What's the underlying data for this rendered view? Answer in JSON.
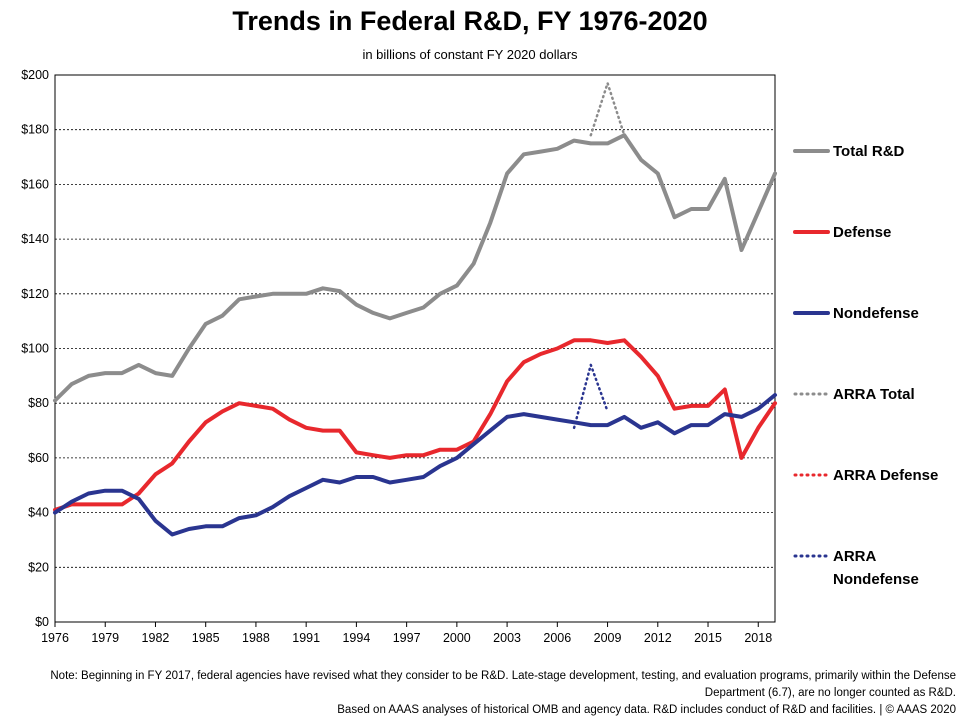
{
  "chart_data": {
    "type": "line",
    "title": "Trends in Federal R&D, FY 1976-2020",
    "subtitle": "in billions of constant FY 2020 dollars",
    "ylim": [
      0,
      200
    ],
    "xlim": [
      1976,
      2019
    ],
    "y_ticks": [
      "$0",
      "$20",
      "$40",
      "$60",
      "$80",
      "$100",
      "$120",
      "$140",
      "$160",
      "$180",
      "$200"
    ],
    "y_tick_values": [
      0,
      20,
      40,
      60,
      80,
      100,
      120,
      140,
      160,
      180,
      200
    ],
    "x_ticks": [
      "1976",
      "1979",
      "1982",
      "1985",
      "1988",
      "1991",
      "1994",
      "1997",
      "2000",
      "2003",
      "2006",
      "2009",
      "2012",
      "2015",
      "2018"
    ],
    "x_tick_values": [
      1976,
      1979,
      1982,
      1985,
      1988,
      1991,
      1994,
      1997,
      2000,
      2003,
      2006,
      2009,
      2012,
      2015,
      2018
    ],
    "grid": "horizontal dashed",
    "legend_position": "right",
    "series": [
      {
        "name": "Total R&D",
        "color": "#8c8c8c",
        "style": "solid",
        "x": [
          1976,
          1977,
          1978,
          1979,
          1980,
          1981,
          1982,
          1983,
          1984,
          1985,
          1986,
          1987,
          1988,
          1989,
          1990,
          1991,
          1992,
          1993,
          1994,
          1995,
          1996,
          1997,
          1998,
          1999,
          2000,
          2001,
          2002,
          2003,
          2004,
          2005,
          2006,
          2007,
          2008,
          2009,
          2010,
          2011,
          2012,
          2013,
          2014,
          2015,
          2016,
          2017,
          2018,
          2019
        ],
        "values": [
          81,
          87,
          90,
          91,
          91,
          94,
          91,
          90,
          100,
          109,
          112,
          118,
          119,
          120,
          120,
          120,
          122,
          121,
          116,
          113,
          111,
          113,
          115,
          120,
          123,
          131,
          146,
          164,
          171,
          172,
          173,
          176,
          175,
          175,
          178,
          169,
          164,
          148,
          151,
          151,
          162,
          136,
          150,
          164
        ]
      },
      {
        "name": "Defense",
        "color": "#e8282d",
        "style": "solid",
        "x": [
          1976,
          1977,
          1978,
          1979,
          1980,
          1981,
          1982,
          1983,
          1984,
          1985,
          1986,
          1987,
          1988,
          1989,
          1990,
          1991,
          1992,
          1993,
          1994,
          1995,
          1996,
          1997,
          1998,
          1999,
          2000,
          2001,
          2002,
          2003,
          2004,
          2005,
          2006,
          2007,
          2008,
          2009,
          2010,
          2011,
          2012,
          2013,
          2014,
          2015,
          2016,
          2017,
          2018,
          2019
        ],
        "values": [
          41,
          43,
          43,
          43,
          43,
          47,
          54,
          58,
          66,
          73,
          77,
          80,
          79,
          78,
          74,
          71,
          70,
          70,
          62,
          61,
          60,
          61,
          61,
          63,
          63,
          66,
          76,
          88,
          95,
          98,
          100,
          103,
          103,
          102,
          103,
          97,
          90,
          78,
          79,
          79,
          85,
          60,
          71,
          80
        ]
      },
      {
        "name": "Nondefense",
        "color": "#2a3590",
        "style": "solid",
        "x": [
          1976,
          1977,
          1978,
          1979,
          1980,
          1981,
          1982,
          1983,
          1984,
          1985,
          1986,
          1987,
          1988,
          1989,
          1990,
          1991,
          1992,
          1993,
          1994,
          1995,
          1996,
          1997,
          1998,
          1999,
          2000,
          2001,
          2002,
          2003,
          2004,
          2005,
          2006,
          2007,
          2008,
          2009,
          2010,
          2011,
          2012,
          2013,
          2014,
          2015,
          2016,
          2017,
          2018,
          2019
        ],
        "values": [
          40,
          44,
          47,
          48,
          48,
          45,
          37,
          32,
          34,
          35,
          35,
          38,
          39,
          42,
          46,
          49,
          52,
          51,
          53,
          53,
          51,
          52,
          53,
          57,
          60,
          65,
          70,
          75,
          76,
          75,
          74,
          73,
          72,
          72,
          75,
          71,
          73,
          69,
          72,
          72,
          76,
          75,
          78,
          83
        ]
      },
      {
        "name": "ARRA Total",
        "color": "#8c8c8c",
        "style": "dotted",
        "x": [
          2008,
          2009,
          2010
        ],
        "values": [
          178,
          197,
          178
        ]
      },
      {
        "name": "ARRA Defense",
        "color": "#e8282d",
        "style": "dotted",
        "x": [
          2007,
          2008
        ],
        "values": [
          103,
          103
        ]
      },
      {
        "name": "ARRA Nondefense",
        "color": "#2a3590",
        "style": "dotted",
        "x": [
          2007,
          2008,
          2009
        ],
        "values": [
          71,
          94,
          77
        ]
      }
    ]
  },
  "legend": [
    {
      "label": "Total R&D",
      "color": "#8c8c8c",
      "style": "solid"
    },
    {
      "label": "Defense",
      "color": "#e8282d",
      "style": "solid"
    },
    {
      "label": "Nondefense",
      "color": "#2a3590",
      "style": "solid"
    },
    {
      "label": "ARRA Total",
      "color": "#8c8c8c",
      "style": "dotted"
    },
    {
      "label": "ARRA Defense",
      "color": "#e8282d",
      "style": "dotted"
    },
    {
      "label": "ARRA Nondefense",
      "color": "#2a3590",
      "style": "dotted"
    }
  ],
  "notes": {
    "line1": "Note: Beginning in FY 2017, federal agencies have revised what they consider to be R&D. Late-stage development, testing, and evaluation programs, primarily within the Defense Department (6.7), are no longer counted as R&D.",
    "line2": "Based on AAAS analyses of historical OMB and agency data. R&D includes conduct of R&D and facilities. | © AAAS 2020"
  }
}
